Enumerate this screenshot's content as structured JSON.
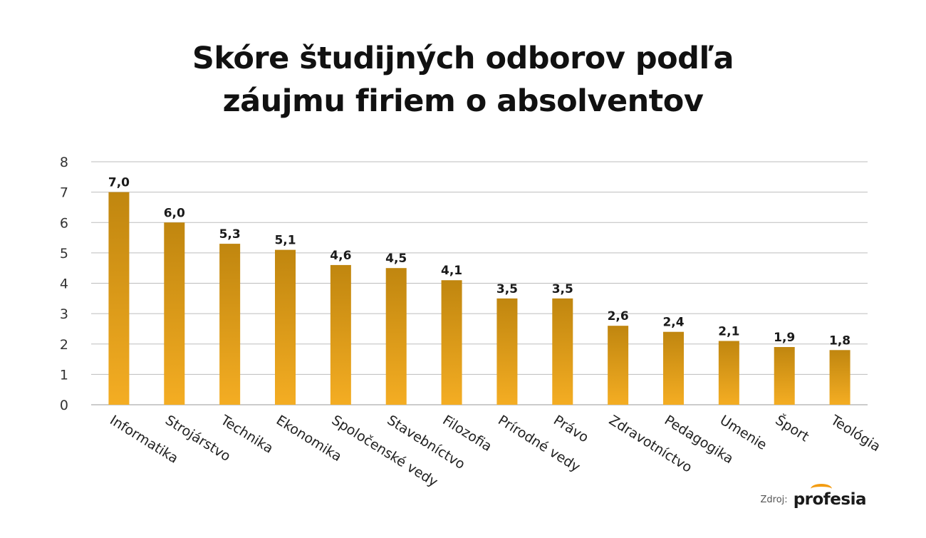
{
  "chart_data": {
    "type": "bar",
    "title_lines": [
      "Skóre študijných odborov podľa",
      "záujmu firiem o absolventov"
    ],
    "categories": [
      "Informatika",
      "Strojárstvo",
      "Technika",
      "Ekonomika",
      "Spoločenské vedy",
      "Stavebníctvo",
      "Filozofia",
      "Prírodné vedy",
      "Právo",
      "Zdravotníctvo",
      "Pedagogika",
      "Umenie",
      "Šport",
      "Teológia"
    ],
    "values": [
      7.0,
      6.0,
      5.3,
      5.1,
      4.6,
      4.5,
      4.1,
      3.5,
      3.5,
      2.6,
      2.4,
      2.1,
      1.9,
      1.8
    ],
    "value_labels": [
      "7,0",
      "6,0",
      "5,3",
      "5,1",
      "4,6",
      "4,5",
      "4,1",
      "3,5",
      "3,5",
      "2,6",
      "2,4",
      "2,1",
      "1,9",
      "1,8"
    ],
    "y_ticks": [
      "0",
      "1",
      "2",
      "3",
      "4",
      "5",
      "6",
      "7",
      "8"
    ],
    "ylim": [
      0,
      8
    ],
    "grid": true,
    "xlabel": "",
    "ylabel": "",
    "bar_color_top": "#c0860f",
    "bar_color_bottom": "#f4ad23"
  },
  "source": {
    "label": "Zdroj:",
    "brand": "profesia",
    "brand_accent": "#f39c12"
  }
}
